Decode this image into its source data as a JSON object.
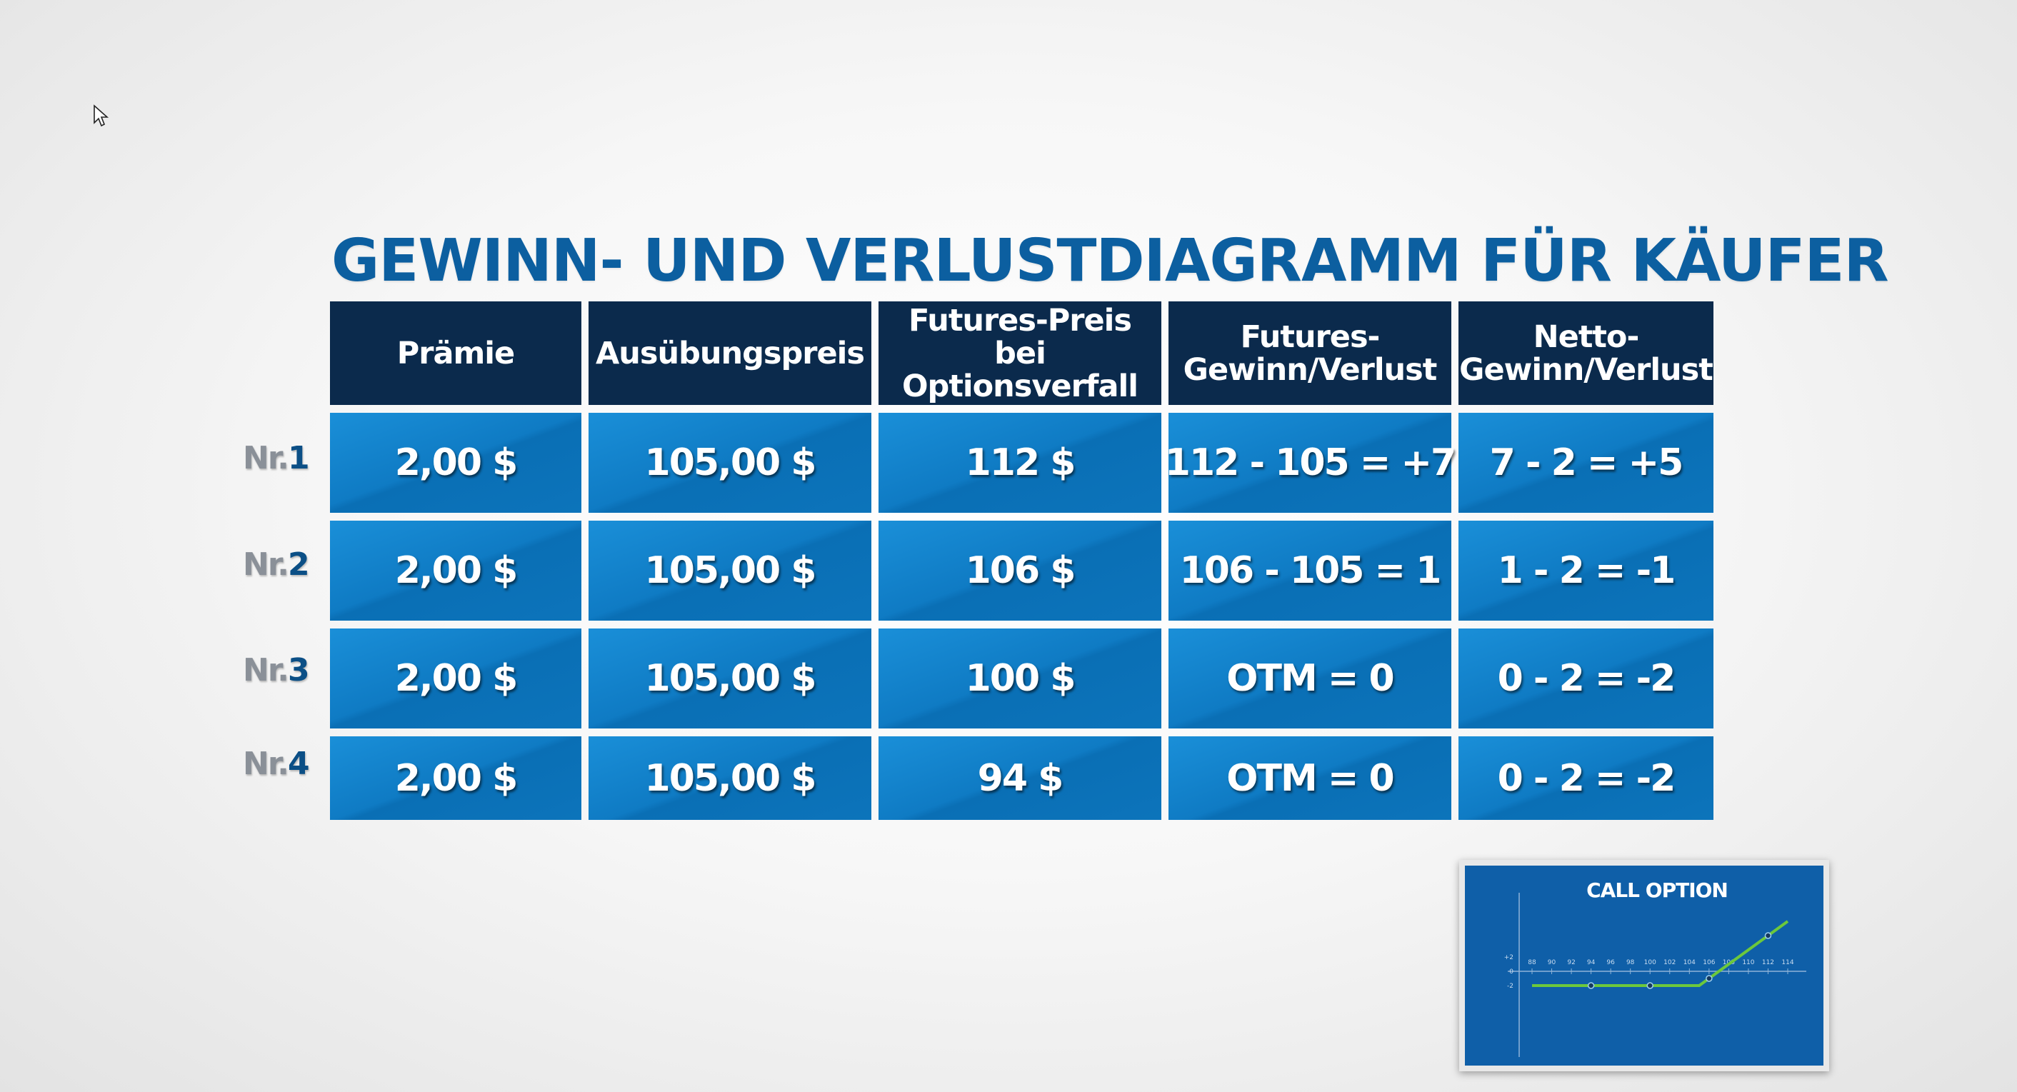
{
  "title": "GEWINN- UND VERLUSTDIAGRAMM FÜR KÄUFER",
  "table": {
    "headers": [
      "Prämie",
      "Ausübungspreis",
      "Futures-Preis bei\nOptionsverfall",
      "Futures-\nGewinn/Verlust",
      "Netto-\nGewinn/Verlust"
    ],
    "rows": [
      {
        "prefix": "Nr.",
        "num": "1",
        "cells": [
          "2,00 $",
          "105,00 $",
          "112 $",
          "112 - 105 = +7",
          "7 - 2 = +5"
        ]
      },
      {
        "prefix": "Nr.",
        "num": "2",
        "cells": [
          "2,00 $",
          "105,00 $",
          "106 $",
          "106 - 105 = 1",
          "1 - 2 = -1"
        ]
      },
      {
        "prefix": "Nr.",
        "num": "3",
        "cells": [
          "2,00 $",
          "105,00 $",
          "100 $",
          "OTM = 0",
          "0 - 2 = -2"
        ]
      },
      {
        "prefix": "Nr.",
        "num": "4",
        "cells": [
          "2,00 $",
          "105,00 $",
          "94 $",
          "OTM = 0",
          "0 - 2 = -2"
        ]
      }
    ]
  },
  "thumbnail": {
    "title": "CALL OPTION",
    "x_ticks": [
      "88",
      "90",
      "92",
      "94",
      "96",
      "98",
      "100",
      "102",
      "104",
      "106",
      "108",
      "110",
      "112",
      "114"
    ],
    "y_ticks": [
      "+2",
      "0",
      "-2"
    ],
    "payoff_points": [
      [
        88,
        -2
      ],
      [
        105,
        -2
      ],
      [
        114,
        7
      ]
    ],
    "marked_points": [
      [
        94,
        -2
      ],
      [
        100,
        -2
      ],
      [
        106,
        -1
      ],
      [
        112,
        5
      ]
    ]
  },
  "colors": {
    "title": "#0c5fa0",
    "header_bg": "#0b2a4c",
    "cell_bg": "#0f7bc4",
    "thumb_bg": "#0f5fa8",
    "payoff_line": "#6cc83c"
  }
}
